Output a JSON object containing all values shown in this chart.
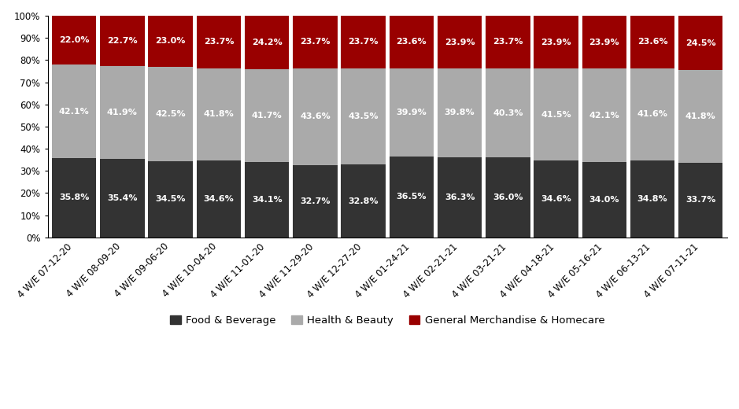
{
  "categories": [
    "4 W/E 07-12-20",
    "4 W/E 08-09-20",
    "4 W/E 09-06-20",
    "4 W/E 10-04-20",
    "4 W/E 11-01-20",
    "4 W/E 11-29-20",
    "4 W/E 12-27-20",
    "4 W/E 01-24-21",
    "4 W/E 02-21-21",
    "4 W/E 03-21-21",
    "4 W/E 04-18-21",
    "4 W/E 05-16-21",
    "4 W/E 06-13-21",
    "4 W/E 07-11-21"
  ],
  "food_beverage": [
    35.8,
    35.4,
    34.5,
    34.6,
    34.1,
    32.7,
    32.8,
    36.5,
    36.3,
    36.0,
    34.6,
    34.0,
    34.8,
    33.7
  ],
  "health_beauty": [
    42.1,
    41.9,
    42.5,
    41.8,
    41.7,
    43.6,
    43.5,
    39.9,
    39.8,
    40.3,
    41.5,
    42.1,
    41.6,
    41.8
  ],
  "general_merch": [
    22.0,
    22.7,
    23.0,
    23.7,
    24.2,
    23.7,
    23.7,
    23.6,
    23.9,
    23.7,
    23.9,
    23.9,
    23.6,
    24.5
  ],
  "color_food": "#333333",
  "color_health": "#aaaaaa",
  "color_general": "#990000",
  "legend_labels": [
    "Food & Beverage",
    "Health & Beauty",
    "General Merchandise & Homecare"
  ],
  "ylim": [
    0,
    100
  ],
  "bar_width": 0.92,
  "label_fontsize": 8.0,
  "tick_fontsize": 8.5
}
